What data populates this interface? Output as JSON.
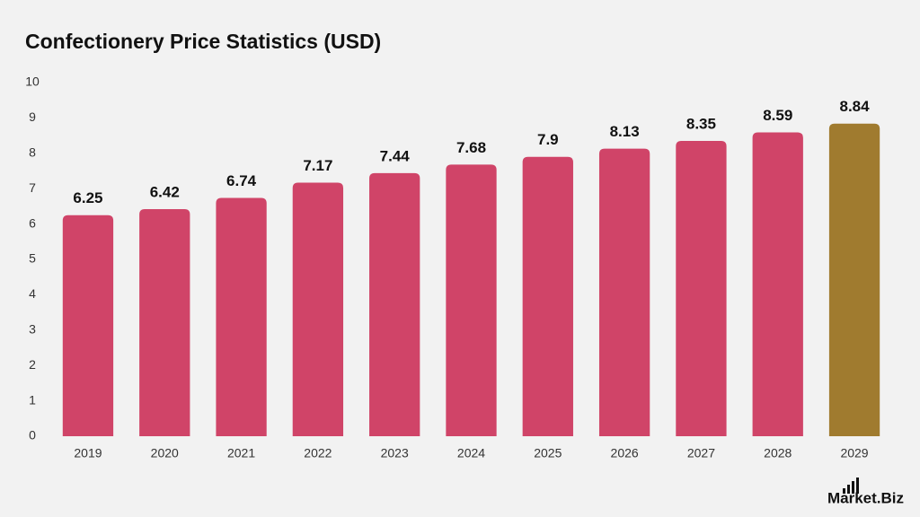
{
  "chart_data": {
    "type": "bar",
    "title": "Confectionery Price Statistics (USD)",
    "categories": [
      "2019",
      "2020",
      "2021",
      "2022",
      "2023",
      "2024",
      "2025",
      "2026",
      "2027",
      "2028",
      "2029"
    ],
    "values": [
      6.25,
      6.42,
      6.74,
      7.17,
      7.44,
      7.68,
      7.9,
      8.13,
      8.35,
      8.59,
      8.84
    ],
    "colors": [
      "#d04468",
      "#d04468",
      "#d04468",
      "#d04468",
      "#d04468",
      "#d04468",
      "#d04468",
      "#d04468",
      "#d04468",
      "#d04468",
      "#a07b2f"
    ],
    "ylim": [
      0,
      10
    ],
    "yticks": [
      0,
      1,
      2,
      3,
      4,
      5,
      6,
      7,
      8,
      9,
      10
    ],
    "grid": false,
    "watermark": "Market.Biz"
  }
}
